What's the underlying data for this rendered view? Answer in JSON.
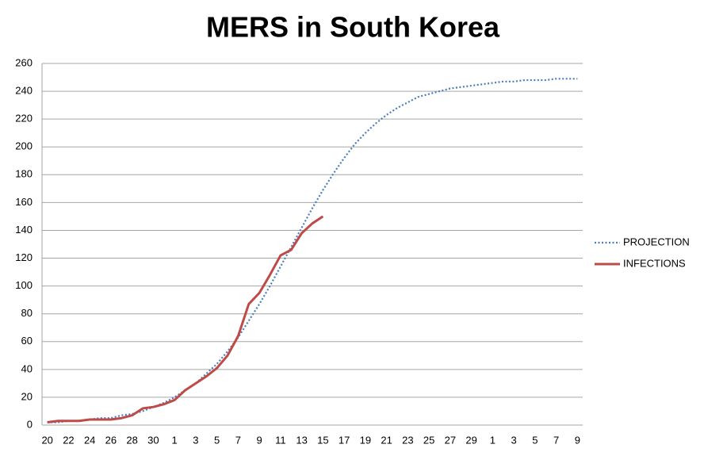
{
  "chart_data": {
    "type": "line",
    "title": "MERS in South Korea",
    "categories": [
      "20",
      null,
      "22",
      null,
      "24",
      null,
      "26",
      null,
      "28",
      null,
      "30",
      null,
      "1",
      null,
      "3",
      null,
      "5",
      null,
      "7",
      null,
      "9",
      null,
      "11",
      null,
      "13",
      null,
      "15",
      null,
      "17",
      null,
      "19",
      null,
      "21",
      null,
      "23",
      null,
      "25",
      null,
      "27",
      null,
      "29",
      null,
      "1",
      null,
      "3",
      null,
      "5",
      null,
      "7",
      null,
      "9"
    ],
    "series": [
      {
        "name": "PROJECTION",
        "color": "#4a7ebb",
        "dashed": true,
        "values": [
          2,
          2,
          3,
          3,
          4,
          5,
          5,
          7,
          8,
          10,
          13,
          16,
          20,
          25,
          30,
          37,
          44,
          53,
          63,
          75,
          87,
          100,
          114,
          128,
          142,
          156,
          169,
          181,
          192,
          202,
          210,
          217,
          223,
          228,
          232,
          236,
          238,
          240,
          242,
          243,
          244,
          245,
          246,
          247,
          247,
          248,
          248,
          248,
          249,
          249,
          249
        ]
      },
      {
        "name": "INFECTIONS",
        "color": "#be4b48",
        "dashed": false,
        "values": [
          2,
          3,
          3,
          3,
          4,
          4,
          4,
          5,
          7,
          12,
          13,
          15,
          18,
          25,
          30,
          35,
          41,
          50,
          64,
          87,
          95,
          108,
          122,
          126,
          138,
          145,
          150,
          null,
          null,
          null,
          null,
          null,
          null,
          null,
          null,
          null,
          null,
          null,
          null,
          null,
          null,
          null,
          null,
          null,
          null,
          null,
          null,
          null,
          null,
          null,
          null
        ]
      }
    ],
    "ylim": [
      0,
      260
    ],
    "yticks": [
      0,
      20,
      40,
      60,
      80,
      100,
      120,
      140,
      160,
      180,
      200,
      220,
      240,
      260
    ],
    "grid": true,
    "legend": "right"
  }
}
